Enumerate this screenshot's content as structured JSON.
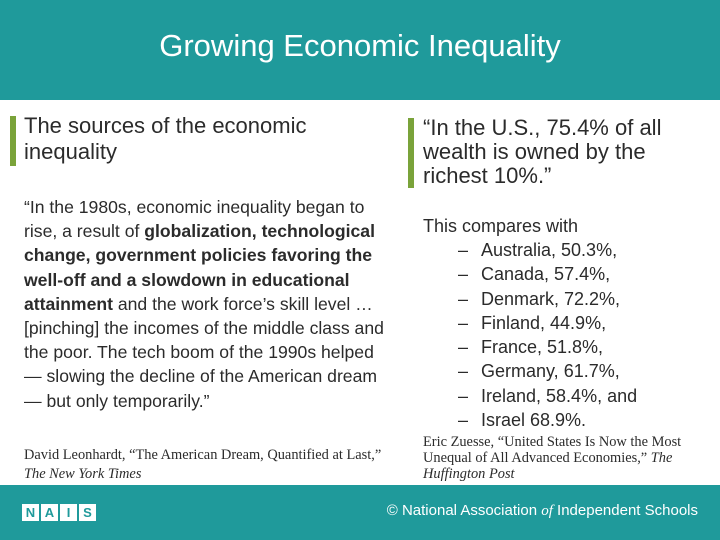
{
  "slide": {
    "title": "Growing Economic Inequality",
    "accent_color": "#1f9a9b",
    "bar_color": "#7aa33a"
  },
  "left": {
    "heading": "The sources of the economic inequality",
    "quote_parts": [
      "“In the 1980s, economic inequality began to rise, a result of ",
      "globalization, technological change, government policies favoring the well-off and a slowdown in educational attainment",
      " and the work force’s skill level … [pinching] the incomes of the middle class and the poor. The tech boom of the 1990s helped — slowing the decline of the American dream — but only temporarily.”"
    ],
    "citation_author": "David Leonhardt, “The American Dream, Quantified at Last,” ",
    "citation_source": "The New York Times"
  },
  "right": {
    "heading": "“In the U.S., 75.4% of all wealth is owned by the richest 10%.”",
    "intro": "This compares with",
    "dash": "–",
    "items": [
      "Australia, 50.3%,",
      "Canada, 57.4%,",
      "Denmark, 72.2%,",
      "Finland, 44.9%,",
      "France, 51.8%,",
      "Germany, 61.7%,",
      "Ireland, 58.4%, and",
      "Israel 68.9%."
    ],
    "citation_author": "Eric Zuesse, “United States Is Now the Most Unequal of All Advanced Economies,” ",
    "citation_source": "The Huffington Post"
  },
  "footer": {
    "logo_letters": [
      "N",
      "A",
      "I",
      "S"
    ],
    "org_prefix": "© National Association ",
    "org_of": "of",
    "org_suffix": " Independent Schools"
  }
}
